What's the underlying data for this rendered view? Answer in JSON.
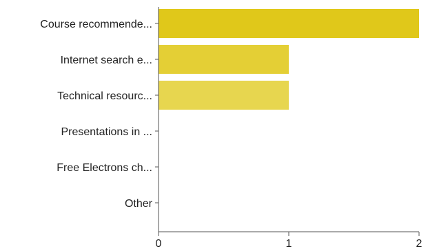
{
  "chart_data": {
    "type": "bar",
    "orientation": "horizontal",
    "categories": [
      "Course recommende...",
      "Internet search e...",
      "Technical resourc...",
      "Presentations in ...",
      "Free Electrons ch...",
      "Other"
    ],
    "values": [
      2,
      1,
      1,
      0,
      0,
      0
    ],
    "bar_colors": [
      "#e0c81a",
      "#e4cf35",
      "#e7d64f",
      "#e9da63",
      "#ecdf78",
      "#efe48c"
    ],
    "xlim": [
      0,
      2
    ],
    "xticks": [
      "0",
      "1",
      "2"
    ],
    "grid": false
  }
}
